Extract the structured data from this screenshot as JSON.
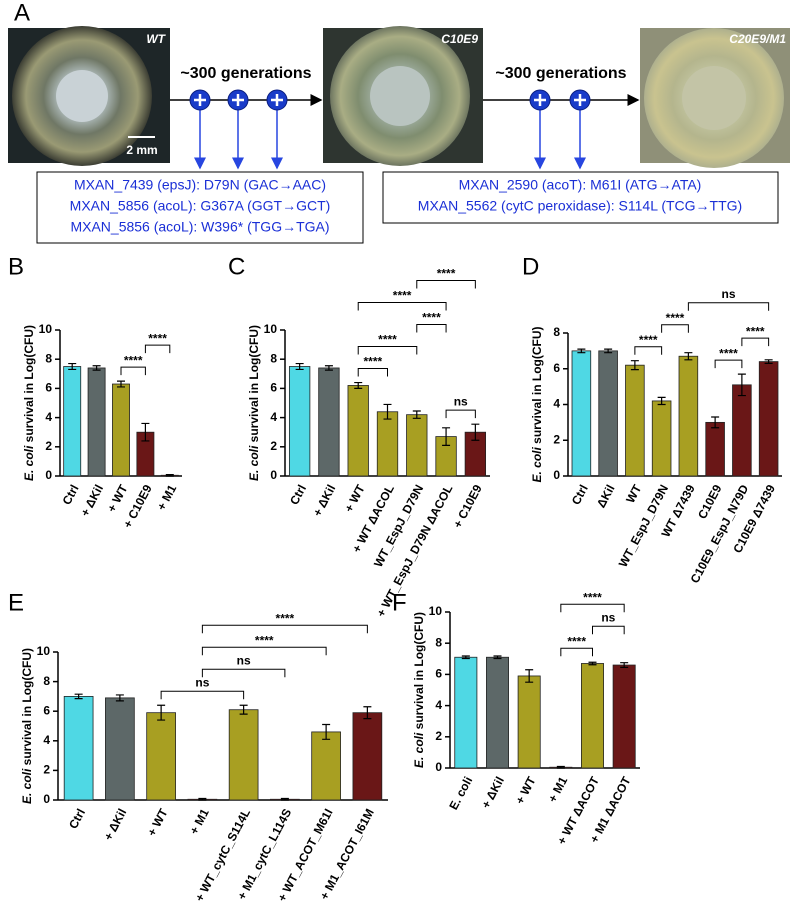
{
  "panel_a": {
    "label": "A",
    "strains": [
      "WT",
      "C10E9",
      "C20E9/M1"
    ],
    "scale_bar": "2 mm",
    "steps": [
      "~300 generations",
      "~300 generations"
    ],
    "mutations": [
      [
        "MXAN_7439 (epsJ): D79N (GAC→AAC)",
        "MXAN_5856 (acoL): G367A (GGT→GCT)",
        "MXAN_5856 (acoL): W396* (TGG→TGA)"
      ],
      [
        "MXAN_2590 (acoT): M61I (ATG→ATA)",
        "MXAN_5562 (cytC peroxidase): S114L (TCG→TTG)"
      ]
    ]
  },
  "chart_data": [
    {
      "type": "bar",
      "panel": "B",
      "ylabel_italic": "E. coli",
      "ylabel": "survival in Log(CFU)",
      "ylim": [
        0,
        10
      ],
      "yticks": [
        0,
        2,
        4,
        6,
        8,
        10
      ],
      "categories": [
        "Ctrl",
        "+ ΔKil",
        "+ WT",
        "+ C10E9",
        "+ M1"
      ],
      "values": [
        7.5,
        7.4,
        6.3,
        3.0,
        0.05
      ],
      "errors": [
        0.2,
        0.15,
        0.2,
        0.6,
        0.05
      ],
      "colors": [
        "#4fd8e4",
        "#5d6868",
        "#a89f22",
        "#6a1717",
        "#6a1717"
      ],
      "brackets": [
        {
          "label": "****",
          "between": [
            "+ WT",
            "+ C10E9"
          ]
        },
        {
          "label": "****",
          "between": [
            "+ C10E9",
            "+ M1"
          ]
        }
      ]
    },
    {
      "type": "bar",
      "panel": "C",
      "ylabel_italic": "E. coli",
      "ylabel": "survival in Log(CFU)",
      "ylim": [
        0,
        10
      ],
      "yticks": [
        0,
        2,
        4,
        6,
        8,
        10
      ],
      "categories": [
        "Ctrl",
        "+ ΔKil",
        "+ WT",
        "+ WT ΔACOL",
        "WT_EspJ_D79N",
        "+ WT_EspJ_D79N ΔACOL",
        "+ C10E9"
      ],
      "values": [
        7.5,
        7.4,
        6.2,
        4.4,
        4.2,
        2.7,
        3.0
      ],
      "errors": [
        0.2,
        0.15,
        0.2,
        0.5,
        0.25,
        0.6,
        0.55
      ],
      "colors": [
        "#4fd8e4",
        "#5d6868",
        "#a89f22",
        "#a89f22",
        "#a89f22",
        "#a89f22",
        "#6a1717"
      ],
      "brackets": [
        {
          "label": "****",
          "between": [
            "+ WT",
            "+ WT ΔACOL"
          ]
        },
        {
          "label": "ns",
          "between": [
            "+ WT_EspJ_D79N ΔACOL",
            "+ C10E9"
          ]
        },
        {
          "label": "****",
          "between": [
            "+ WT",
            "WT_EspJ_D79N"
          ]
        },
        {
          "label": "****",
          "between": [
            "WT_EspJ_D79N",
            "+ WT_EspJ_D79N ΔACOL"
          ]
        },
        {
          "label": "****",
          "between": [
            "+ WT",
            "+ WT_EspJ_D79N ΔACOL"
          ]
        },
        {
          "label": "****",
          "between": [
            "WT_EspJ_D79N",
            "+ C10E9"
          ]
        }
      ]
    },
    {
      "type": "bar",
      "panel": "D",
      "ylabel_italic": "E. coli",
      "ylabel": "survival in Log(CFU)",
      "ylim": [
        0,
        8
      ],
      "yticks": [
        0,
        2,
        4,
        6,
        8
      ],
      "categories": [
        "Ctrl",
        "ΔKil",
        "WT",
        "WT_EspJ_D79N",
        "WT Δ7439",
        "C10E9",
        "C10E9_EspJ_N79D",
        "C10E9 Δ7439"
      ],
      "values": [
        7.0,
        7.0,
        6.2,
        4.2,
        6.7,
        3.0,
        5.1,
        6.4
      ],
      "errors": [
        0.1,
        0.1,
        0.25,
        0.2,
        0.2,
        0.3,
        0.6,
        0.1
      ],
      "colors": [
        "#4fd8e4",
        "#5d6868",
        "#a89f22",
        "#a89f22",
        "#a89f22",
        "#6a1717",
        "#6a1717",
        "#6a1717"
      ],
      "brackets": [
        {
          "label": "****",
          "between": [
            "WT",
            "WT_EspJ_D79N"
          ]
        },
        {
          "label": "****",
          "between": [
            "C10E9",
            "C10E9_EspJ_N79D"
          ]
        },
        {
          "label": "****",
          "between": [
            "WT_EspJ_D79N",
            "WT Δ7439"
          ]
        },
        {
          "label": "****",
          "between": [
            "C10E9_EspJ_N79D",
            "C10E9 Δ7439"
          ]
        },
        {
          "label": "ns",
          "between": [
            "WT Δ7439",
            "C10E9 Δ7439"
          ]
        }
      ]
    },
    {
      "type": "bar",
      "panel": "E",
      "ylabel_italic": "E. coli",
      "ylabel": "survival in Log(CFU)",
      "ylim": [
        0,
        10
      ],
      "yticks": [
        0,
        2,
        4,
        6,
        8,
        10
      ],
      "categories": [
        "Ctrl",
        "+ ΔKil",
        "+ WT",
        "+ M1",
        "+ WT_cytC_S114L",
        "+ M1_cytC_L114S",
        "+ WT_ACOT_M61I",
        "+ M1_ACOT_I61M"
      ],
      "values": [
        7.0,
        6.9,
        5.9,
        0.05,
        6.1,
        0.05,
        4.6,
        5.9
      ],
      "errors": [
        0.15,
        0.2,
        0.5,
        0.05,
        0.3,
        0.05,
        0.5,
        0.4
      ],
      "colors": [
        "#4fd8e4",
        "#5d6868",
        "#a89f22",
        "#6a1717",
        "#a89f22",
        "#6a1717",
        "#a89f22",
        "#6a1717"
      ],
      "brackets": [
        {
          "label": "ns",
          "between": [
            "+ WT",
            "+ WT_cytC_S114L"
          ]
        },
        {
          "label": "ns",
          "between": [
            "+ M1",
            "+ M1_cytC_L114S"
          ]
        },
        {
          "label": "****",
          "between": [
            "+ M1",
            "+ WT_ACOT_M61I"
          ]
        },
        {
          "label": "****",
          "between": [
            "+ M1",
            "+ M1_ACOT_I61M"
          ]
        }
      ]
    },
    {
      "type": "bar",
      "panel": "F",
      "ylabel_italic": "E. coli",
      "ylabel": "survival in Log(CFU)",
      "ylim": [
        0,
        10
      ],
      "yticks": [
        0,
        2,
        4,
        6,
        8,
        10
      ],
      "categories": [
        "E. coli",
        "+ ΔKil",
        "+ WT",
        "+ M1",
        "+ WT ΔACOT",
        "+ M1 ΔACOT"
      ],
      "values": [
        7.1,
        7.1,
        5.9,
        0.05,
        6.7,
        6.6
      ],
      "errors": [
        0.08,
        0.08,
        0.4,
        0.05,
        0.08,
        0.15
      ],
      "colors": [
        "#4fd8e4",
        "#5d6868",
        "#a89f22",
        "#6a1717",
        "#a89f22",
        "#6a1717"
      ],
      "brackets": [
        {
          "label": "****",
          "between": [
            "+ M1",
            "+ WT ΔACOT"
          ]
        },
        {
          "label": "ns",
          "between": [
            "+ WT ΔACOT",
            "+ M1 ΔACOT"
          ]
        },
        {
          "label": "****",
          "between": [
            "+ M1",
            "+ M1 ΔACOT"
          ]
        }
      ]
    }
  ]
}
